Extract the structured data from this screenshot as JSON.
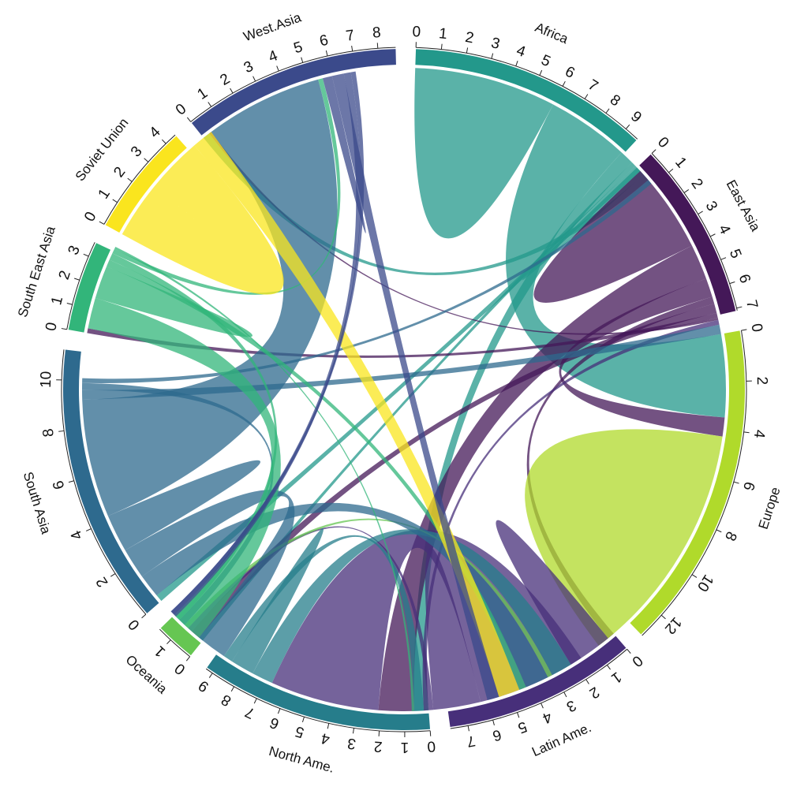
{
  "chart_data": {
    "type": "chord",
    "title": "",
    "sectors": [
      {
        "name": "Africa",
        "label": "Africa",
        "color": "#23988B",
        "max": 9.6
      },
      {
        "name": "East Asia",
        "label": "East Asia",
        "color": "#441858",
        "max": 7.1
      },
      {
        "name": "Europe",
        "label": "Europe",
        "color": "#B0DA2B",
        "max": 13.1
      },
      {
        "name": "Latin Ame.",
        "label": "Latin Ame.",
        "color": "#472F7A",
        "max": 7.7
      },
      {
        "name": "North Ame.",
        "label": "North Ame.",
        "color": "#267D8B",
        "max": 9.3
      },
      {
        "name": "Oceania",
        "label": "Oceania",
        "color": "#66C652",
        "max": 1.6
      },
      {
        "name": "South Asia",
        "label": "South Asia",
        "color": "#2E6A8E",
        "max": 11.2
      },
      {
        "name": "South East Asia",
        "label": "South East Asia",
        "color": "#32B57A",
        "max": 3.6
      },
      {
        "name": "Soviet Union",
        "label": "Soviet Union",
        "color": "#FAE51E",
        "max": 4.5
      },
      {
        "name": "West.Asia",
        "label": "West.Asia",
        "color": "#3B4A8B",
        "max": 8.7
      }
    ],
    "ticks": {
      "Africa": [
        "0",
        "1",
        "2",
        "3",
        "4",
        "5",
        "6",
        "7",
        "8",
        "9"
      ],
      "East Asia": [
        "0",
        "1",
        "2",
        "3",
        "4",
        "5",
        "6",
        "7"
      ],
      "Europe": [
        "0",
        "2",
        "4",
        "6",
        "8",
        "10",
        "12"
      ],
      "Latin Ame.": [
        "0",
        "1",
        "2",
        "3",
        "4",
        "5",
        "6",
        "7"
      ],
      "North Ame.": [
        "0",
        "1",
        "2",
        "3",
        "4",
        "5",
        "6",
        "7",
        "8",
        "9"
      ],
      "Oceania": [
        "0",
        "1"
      ],
      "South Asia": [
        "0",
        "2",
        "4",
        "6",
        "8",
        "10"
      ],
      "South East Asia": [
        "0",
        "1",
        "2",
        "3"
      ],
      "Soviet Union": [
        "0",
        "1",
        "2",
        "3",
        "4"
      ],
      "West.Asia": [
        "0",
        "1",
        "2",
        "3",
        "4",
        "5",
        "6",
        "7",
        "8"
      ]
    },
    "flows": [
      {
        "from": "Africa",
        "to": "Africa",
        "value": 3.0
      },
      {
        "from": "Africa",
        "to": "Europe",
        "value": 3.5
      },
      {
        "from": "Africa",
        "to": "North Ame.",
        "value": 0.6
      },
      {
        "from": "Africa",
        "to": "Oceania",
        "value": 0.2
      },
      {
        "from": "Africa",
        "to": "South Asia",
        "value": 0.3
      },
      {
        "from": "Africa",
        "to": "East Asia",
        "value": 0.2
      },
      {
        "from": "Africa",
        "to": "West.Asia",
        "value": 0.3
      },
      {
        "from": "East Asia",
        "to": "East Asia",
        "value": 1.9
      },
      {
        "from": "East Asia",
        "to": "North Ame.",
        "value": 1.5
      },
      {
        "from": "East Asia",
        "to": "Europe",
        "value": 0.8
      },
      {
        "from": "East Asia",
        "to": "Latin Ame.",
        "value": 0.3
      },
      {
        "from": "East Asia",
        "to": "Oceania",
        "value": 0.4
      },
      {
        "from": "East Asia",
        "to": "South East Asia",
        "value": 0.2
      },
      {
        "from": "East Asia",
        "to": "West.Asia",
        "value": 0.1
      },
      {
        "from": "Europe",
        "to": "Europe",
        "value": 5.2
      },
      {
        "from": "Latin Ame.",
        "to": "Europe",
        "value": 1.4
      },
      {
        "from": "Latin Ame.",
        "to": "North Ame.",
        "value": 4.6
      },
      {
        "from": "Latin Ame.",
        "to": "Latin Ame.",
        "value": 1.0
      },
      {
        "from": "Latin Ame.",
        "to": "Oceania",
        "value": 0.2
      },
      {
        "from": "Latin Ame.",
        "to": "East Asia",
        "value": 0.2
      },
      {
        "from": "North Ame.",
        "to": "Europe",
        "value": 0.9
      },
      {
        "from": "North Ame.",
        "to": "North Ame.",
        "value": 0.5
      },
      {
        "from": "North Ame.",
        "to": "Latin Ame.",
        "value": 0.4
      },
      {
        "from": "Oceania",
        "to": "Europe",
        "value": 0.2
      },
      {
        "from": "South Asia",
        "to": "Europe",
        "value": 1.0
      },
      {
        "from": "South Asia",
        "to": "North Ame.",
        "value": 1.3
      },
      {
        "from": "South Asia",
        "to": "South Asia",
        "value": 0.8
      },
      {
        "from": "South Asia",
        "to": "West.Asia",
        "value": 5.0
      },
      {
        "from": "South Asia",
        "to": "East Asia",
        "value": 0.4
      },
      {
        "from": "South Asia",
        "to": "Oceania",
        "value": 0.3
      },
      {
        "from": "South Asia",
        "to": "Africa",
        "value": 0.2
      },
      {
        "from": "South East Asia",
        "to": "North Ame.",
        "value": 1.3
      },
      {
        "from": "South East Asia",
        "to": "South East Asia",
        "value": 0.7
      },
      {
        "from": "South East Asia",
        "to": "Europe",
        "value": 0.3
      },
      {
        "from": "South East Asia",
        "to": "Oceania",
        "value": 0.3
      },
      {
        "from": "South East Asia",
        "to": "West.Asia",
        "value": 0.2
      },
      {
        "from": "South East Asia",
        "to": "Latin Ame.",
        "value": 0.1
      },
      {
        "from": "Soviet Union",
        "to": "Soviet Union",
        "value": 2.4
      },
      {
        "from": "Soviet Union",
        "to": "Europe",
        "value": 0.9
      },
      {
        "from": "West.Asia",
        "to": "West.Asia",
        "value": 0.2
      },
      {
        "from": "West.Asia",
        "to": "Europe",
        "value": 0.5
      },
      {
        "from": "West.Asia",
        "to": "North Ame.",
        "value": 0.3
      },
      {
        "from": "West.Asia",
        "to": "Oceania",
        "value": 0.2
      }
    ]
  }
}
